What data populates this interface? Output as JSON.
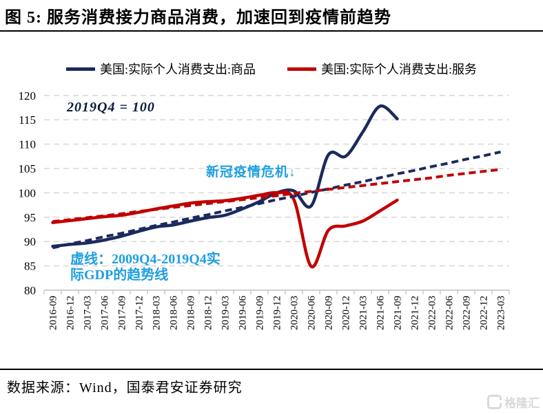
{
  "header": {
    "title": "图 5: 服务消费接力商品消费，加速回到疫情前趋势"
  },
  "colors": {
    "navy": "#1b2a5e",
    "red": "#c00000",
    "light_blue": "#1f9fe0",
    "gridline": "#d9d9d9",
    "axis": "#bfbfbf",
    "watermark_gray": "#d9d9d9"
  },
  "legend": {
    "items": [
      {
        "label": "美国:实际个人消费支出:商品",
        "color": "#1b2a5e"
      },
      {
        "label": "美国:实际个人消费支出:服务",
        "color": "#c00000"
      }
    ]
  },
  "annotations": {
    "index_note": "2019Q4 = 100",
    "covid_note": "新冠疫情危机↓",
    "trend_note": "虚线：2009Q4-2019Q4实\n际GDP的趋势线"
  },
  "footer": {
    "source": "数据来源：Wind，国泰君安证券研究",
    "watermark": "格隆汇"
  },
  "chart_data": {
    "type": "line",
    "index_base": "2019Q4 = 100",
    "ylim": [
      80,
      120
    ],
    "y_ticks": [
      80,
      85,
      90,
      95,
      100,
      105,
      110,
      115,
      120
    ],
    "grid": "horizontal-dashed",
    "legend_position": "top",
    "categories": [
      "2016-09",
      "2016-12",
      "2017-03",
      "2017-06",
      "2017-09",
      "2017-12",
      "2018-03",
      "2018-06",
      "2018-09",
      "2018-12",
      "2019-03",
      "2019-06",
      "2019-09",
      "2019-12",
      "2020-03",
      "2020-06",
      "2020-09",
      "2020-12",
      "2021-03",
      "2021-06",
      "2021-09",
      "2021-12",
      "2022-03",
      "2022-06",
      "2022-09",
      "2022-12",
      "2023-03"
    ],
    "series": [
      {
        "id": "goods",
        "name": "美国:实际个人消费支出:商品",
        "color": "#1b2a5e",
        "line": "solid",
        "values": [
          89.0,
          89.4,
          89.7,
          90.3,
          91.1,
          92.1,
          93.0,
          93.4,
          94.2,
          94.9,
          95.4,
          96.7,
          98.2,
          100.0,
          100.4,
          97.3,
          107.8,
          107.5,
          112.5,
          117.8,
          115.2
        ]
      },
      {
        "id": "services",
        "name": "美国:实际个人消费支出:服务",
        "color": "#c00000",
        "line": "solid",
        "values": [
          93.9,
          94.3,
          94.7,
          95.1,
          95.4,
          96.0,
          96.7,
          97.3,
          97.9,
          98.2,
          98.4,
          98.9,
          99.5,
          100.0,
          98.6,
          84.9,
          92.3,
          93.2,
          94.2,
          96.3,
          98.5
        ]
      },
      {
        "id": "goods-trend",
        "name": "商品 2009Q4-2019Q4实际GDP趋势线(虚线)",
        "color": "#1b2a5e",
        "line": "dashed",
        "values": [
          88.7,
          89.5,
          90.2,
          91.0,
          91.7,
          92.5,
          93.3,
          94.0,
          94.8,
          95.5,
          96.3,
          97.0,
          97.8,
          98.6,
          99.3,
          100.1,
          100.8,
          101.6,
          102.3,
          103.1,
          103.9,
          104.6,
          105.4,
          106.1,
          106.9,
          107.6,
          108.4
        ]
      },
      {
        "id": "services-trend",
        "name": "服务 2009Q4-2019Q4实际GDP趋势线(虚线)",
        "color": "#c00000",
        "line": "dashed",
        "values": [
          94.1,
          94.5,
          94.9,
          95.3,
          95.7,
          96.2,
          96.6,
          97.0,
          97.4,
          97.8,
          98.2,
          98.6,
          99.0,
          99.4,
          99.9,
          100.3,
          100.7,
          101.1,
          101.5,
          101.9,
          102.3,
          102.7,
          103.1,
          103.6,
          104.0,
          104.4,
          104.8
        ]
      }
    ]
  }
}
